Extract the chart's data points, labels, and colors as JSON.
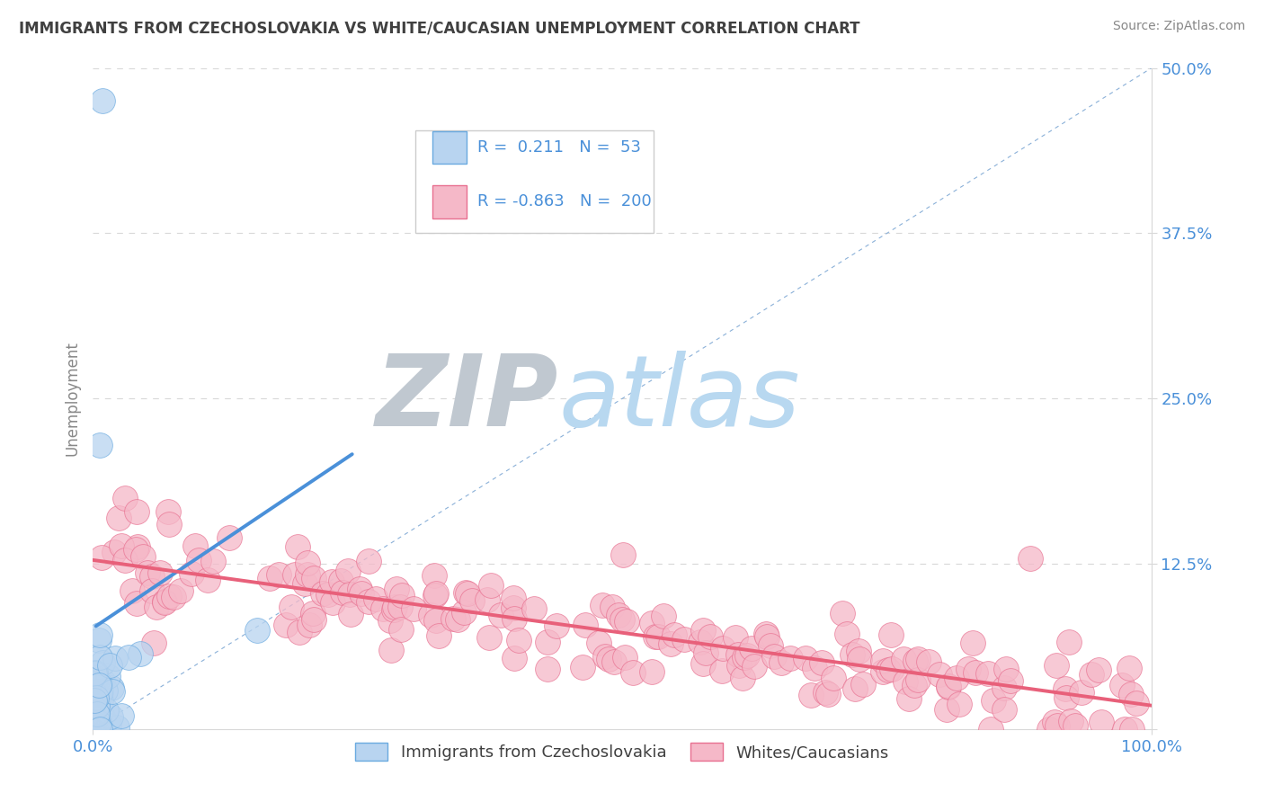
{
  "title": "IMMIGRANTS FROM CZECHOSLOVAKIA VS WHITE/CAUCASIAN UNEMPLOYMENT CORRELATION CHART",
  "source_text": "Source: ZipAtlas.com",
  "ylabel": "Unemployment",
  "xlim": [
    0,
    1.0
  ],
  "ylim": [
    0,
    0.5
  ],
  "ytick_vals": [
    0.0,
    0.125,
    0.25,
    0.375,
    0.5
  ],
  "ytick_labels": [
    "",
    "12.5%",
    "25.0%",
    "37.5%",
    "50.0%"
  ],
  "xtick_vals": [
    0.0,
    1.0
  ],
  "xtick_labels": [
    "0.0%",
    "100.0%"
  ],
  "blue_R": 0.211,
  "blue_N": 53,
  "pink_R": -0.863,
  "pink_N": 200,
  "blue_fill": "#b8d4f0",
  "pink_fill": "#f5b8c8",
  "blue_edge": "#6aaae0",
  "pink_edge": "#e87090",
  "blue_line": "#4a90d9",
  "pink_line": "#e8607a",
  "diag_line_color": "#8ab0d8",
  "grid_color": "#d8d8d8",
  "title_color": "#404040",
  "source_color": "#888888",
  "tick_color": "#4a90d9",
  "ylabel_color": "#888888",
  "watermark_ZIP_color": "#c0c8d0",
  "watermark_atlas_color": "#b8d8f0",
  "legend_text_color": "#4a90d9",
  "legend_border_color": "#cccccc",
  "background": "#ffffff",
  "blue_trend_x": [
    0.003,
    0.245
  ],
  "blue_trend_y": [
    0.078,
    0.208
  ],
  "pink_trend_x": [
    0.0,
    1.0
  ],
  "pink_trend_y": [
    0.128,
    0.018
  ],
  "scatter_size": 400,
  "blue_seed": 77,
  "pink_seed": 55
}
